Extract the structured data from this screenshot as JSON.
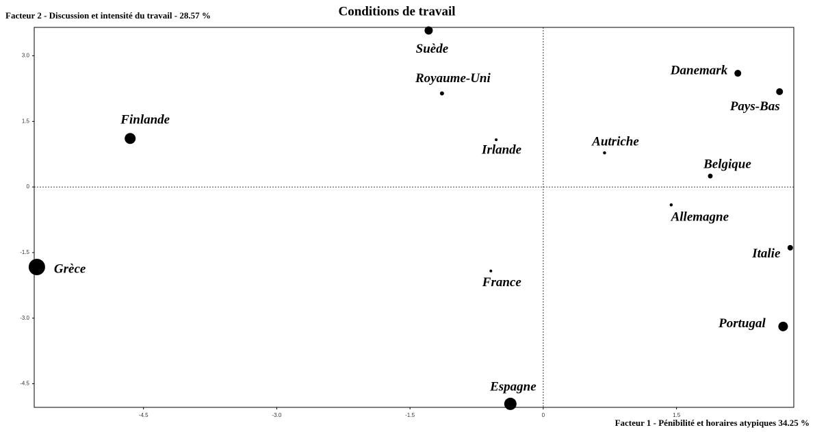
{
  "chart_data": {
    "type": "scatter",
    "title": "Conditions de travail",
    "y_label": "Facteur 2  -  Discussion et intensité du travail - 28.57 %",
    "x_label": "Facteur 1 - Pénibilité et horaires atypiques 34.25 %",
    "labels": [
      "Suède",
      "Royaume-Uni",
      "Danemark",
      "Pays-Bas",
      "Finlande",
      "Irlande",
      "Autriche",
      "Belgique",
      "Allemagne",
      "Italie",
      "Grèce",
      "France",
      "Portugal",
      "Espagne"
    ],
    "x": [
      -1.29,
      -1.14,
      2.19,
      2.66,
      -4.65,
      -0.53,
      0.69,
      1.88,
      1.44,
      2.78,
      -5.7,
      -0.59,
      2.7,
      -0.37
    ],
    "values": [
      3.58,
      2.14,
      2.6,
      2.18,
      1.11,
      1.08,
      0.78,
      0.25,
      -0.41,
      -1.39,
      -1.83,
      -1.92,
      -3.19,
      -4.96
    ],
    "sizes": [
      36,
      9,
      25,
      25,
      64,
      4,
      5,
      12,
      5,
      16,
      144,
      4,
      49,
      81
    ],
    "color": "#000000",
    "xlim": [
      -5.73,
      2.82
    ],
    "ylim": [
      -5.04,
      3.65
    ],
    "xticks": [
      -4.5,
      {
        "value": -3,
        "label": "-3.0"
      },
      -1.5,
      0,
      1.5
    ],
    "yticks": [
      {
        "value": 3,
        "label": "3.0"
      },
      1.5,
      0,
      -1.5,
      {
        "value": -3,
        "label": "-3.0"
      },
      -4.5
    ]
  }
}
